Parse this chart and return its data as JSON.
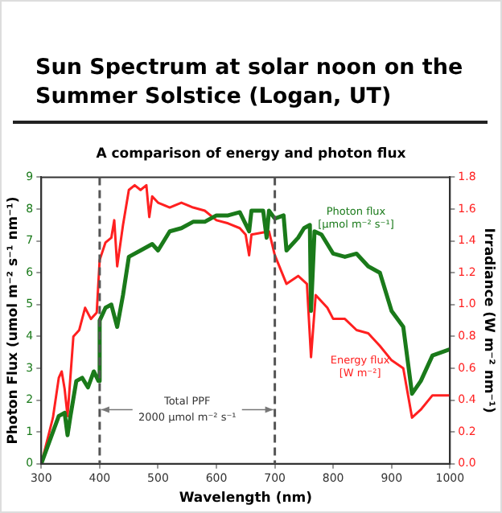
{
  "chart_data": {
    "type": "line",
    "title": "Sun Spectrum at solar noon on the Summer Solstice (Logan, UT)",
    "subtitle": "A comparison of energy and photon flux",
    "xlabel": "Wavelength (nm)",
    "ylabel": "Photon Flux (umol m⁻² s⁻¹ nm⁻¹)",
    "y2label": "Irradiance (W m⁻² nm⁻¹)",
    "series": [
      {
        "name": "Photon flux [µmol m⁻² s⁻¹]",
        "color": "#1a7a1a",
        "x": [
          300,
          320,
          330,
          340,
          345,
          350,
          360,
          370,
          380,
          390,
          398,
          400,
          410,
          420,
          430,
          440,
          450,
          470,
          490,
          500,
          520,
          540,
          560,
          580,
          600,
          620,
          640,
          656,
          660,
          680,
          686,
          690,
          700,
          715,
          720,
          740,
          750,
          760,
          762,
          768,
          780,
          800,
          820,
          840,
          860,
          880,
          900,
          920,
          935,
          950,
          970,
          1000
        ],
        "values": [
          0,
          1.0,
          1.5,
          1.6,
          0.9,
          1.5,
          2.6,
          2.7,
          2.4,
          2.9,
          2.6,
          4.5,
          4.9,
          5.0,
          4.3,
          5.3,
          6.5,
          6.7,
          6.9,
          6.7,
          7.3,
          7.4,
          7.6,
          7.6,
          7.8,
          7.8,
          7.9,
          7.3,
          7.95,
          7.95,
          7.1,
          7.95,
          7.7,
          7.8,
          6.7,
          7.1,
          7.4,
          7.5,
          4.8,
          7.3,
          7.2,
          6.6,
          6.5,
          6.6,
          6.2,
          6.0,
          4.8,
          4.3,
          2.2,
          2.6,
          3.4,
          3.6
        ]
      },
      {
        "name": "Energy flux [W m⁻²]",
        "color": "#ff2020",
        "axis": "y2",
        "x": [
          300,
          320,
          330,
          335,
          340,
          345,
          355,
          365,
          375,
          385,
          395,
          400,
          410,
          420,
          425,
          430,
          440,
          450,
          460,
          470,
          480,
          485,
          490,
          500,
          520,
          540,
          560,
          580,
          600,
          620,
          640,
          650,
          656,
          660,
          690,
          700,
          720,
          740,
          755,
          762,
          770,
          790,
          800,
          820,
          840,
          860,
          880,
          900,
          920,
          935,
          950,
          970,
          1000
        ],
        "values": [
          0,
          0.29,
          0.54,
          0.58,
          0.47,
          0.3,
          0.8,
          0.84,
          0.98,
          0.91,
          0.95,
          1.28,
          1.39,
          1.42,
          1.53,
          1.24,
          1.5,
          1.72,
          1.75,
          1.72,
          1.75,
          1.55,
          1.68,
          1.64,
          1.61,
          1.64,
          1.61,
          1.59,
          1.53,
          1.51,
          1.48,
          1.44,
          1.31,
          1.44,
          1.46,
          1.31,
          1.13,
          1.18,
          1.13,
          0.67,
          1.06,
          0.98,
          0.91,
          0.91,
          0.84,
          0.82,
          0.74,
          0.65,
          0.6,
          0.29,
          0.34,
          0.43,
          0.43
        ]
      }
    ],
    "xlim": [
      300,
      1000
    ],
    "xticks": [
      300,
      400,
      500,
      600,
      700,
      800,
      900,
      1000
    ],
    "ylim": [
      0,
      9
    ],
    "yticks": [
      0,
      1,
      2,
      3,
      4,
      5,
      6,
      7,
      8,
      9
    ],
    "y2lim": [
      0,
      1.8
    ],
    "y2ticks": [
      {
        "value": 0,
        "label": "0.0"
      },
      {
        "value": 0.2,
        "label": "0.2"
      },
      {
        "value": 0.4,
        "label": "0.4"
      },
      {
        "value": 0.6,
        "label": "0.6"
      },
      {
        "value": 0.8,
        "label": "0.8"
      },
      {
        "value": 1.0,
        "label": "1.0"
      },
      {
        "value": 1.2,
        "label": "1.2"
      },
      {
        "value": 1.4,
        "label": "1.4"
      },
      {
        "value": 1.6,
        "label": "1.6"
      },
      {
        "value": 1.8,
        "label": "1.8"
      }
    ],
    "ref_lines": [
      {
        "axis": "x",
        "value": 400,
        "line_style": "dashed",
        "color": "#555555"
      },
      {
        "axis": "x",
        "value": 700,
        "line_style": "dashed",
        "color": "#555555"
      }
    ],
    "annotations": [
      "Total PPF",
      {
        "text": "2000 µmol m⁻² s⁻¹",
        "x": 400,
        "y": 1.7
      }
    ],
    "grid": false,
    "legend": false,
    "marker": "none",
    "line_style": "solid"
  }
}
